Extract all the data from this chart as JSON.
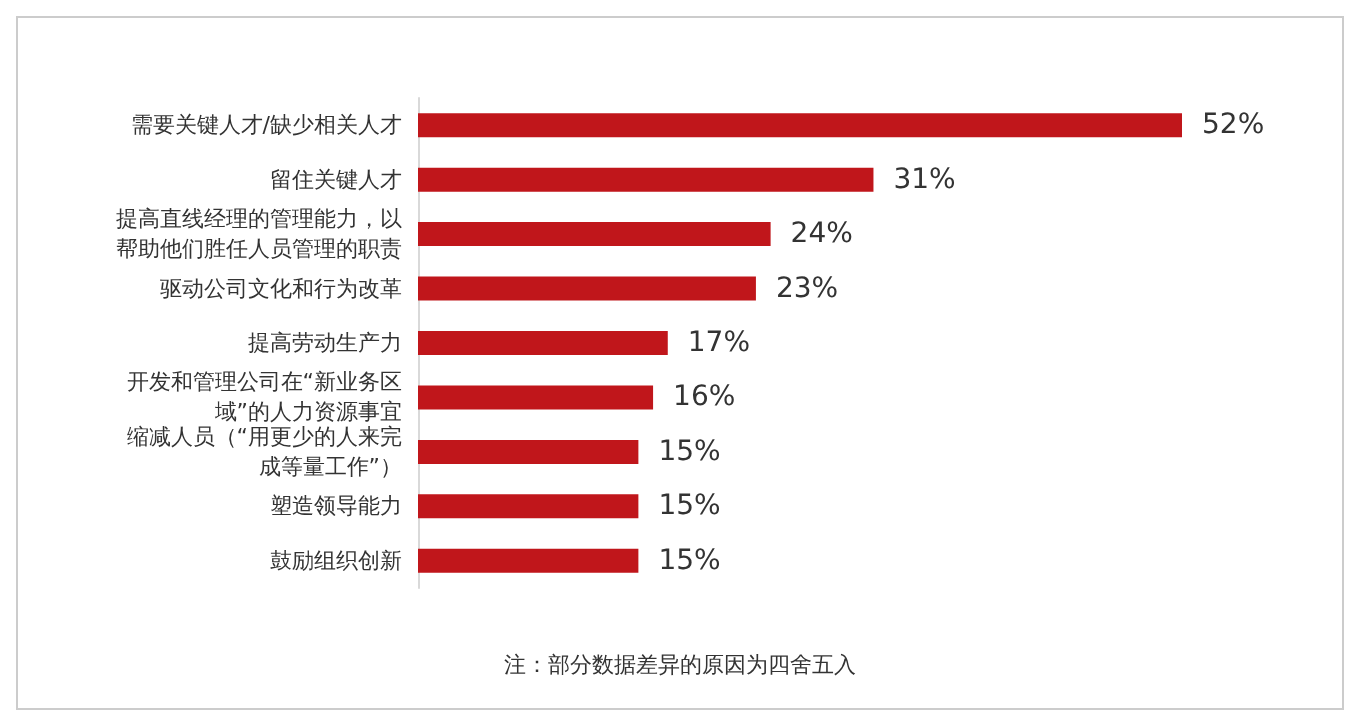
{
  "chart_data": {
    "type": "bar",
    "orientation": "horizontal",
    "categories": [
      "需要关键人才/缺少相关人才",
      "留住关键人才",
      "提高直线经理的管理能力，以帮助他们胜任人员管理的职责",
      "驱动公司文化和行为改革",
      "提高劳动生产力",
      "开发和管理公司在“新业务区域”的人力资源事宜",
      "缩减人员（“用更少的人来完成等量工作”）",
      "塑造领导能力",
      "鼓励组织创新"
    ],
    "values": [
      52,
      31,
      24,
      23,
      17,
      16,
      15,
      15,
      15
    ],
    "value_labels": [
      "52%",
      "31%",
      "24%",
      "23%",
      "17%",
      "16%",
      "15%",
      "15%",
      "15%"
    ],
    "color": "#c0161b",
    "annotations": [
      "注：部分数据差异的原因为四舍五入"
    ]
  }
}
